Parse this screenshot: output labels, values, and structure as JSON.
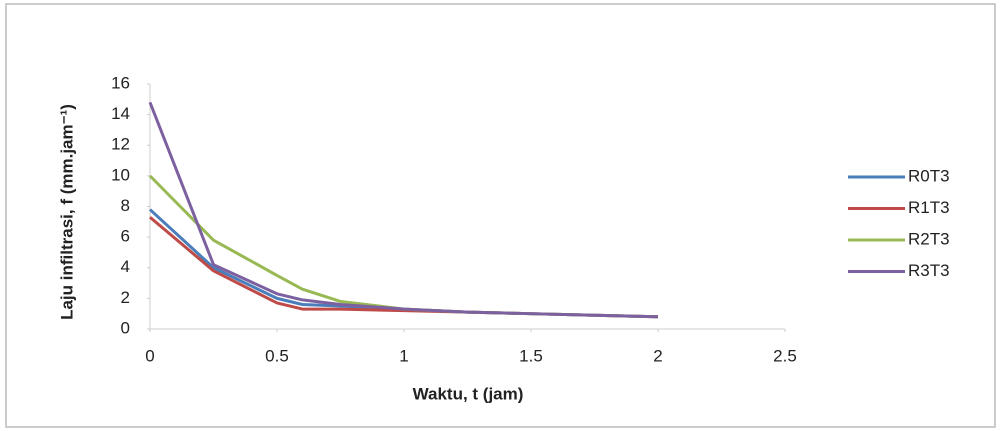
{
  "chart_data": {
    "type": "line",
    "x": [
      0,
      0.25,
      0.5,
      0.6,
      0.75,
      1,
      1.25,
      1.5,
      1.75,
      2
    ],
    "series": [
      {
        "name": "R0T3",
        "color": "#4a7ebb",
        "values": [
          7.8,
          4.0,
          2.0,
          1.6,
          1.5,
          1.3,
          1.1,
          1.0,
          0.9,
          0.8
        ]
      },
      {
        "name": "R1T3",
        "color": "#be4b48",
        "values": [
          7.3,
          3.8,
          1.7,
          1.3,
          1.3,
          1.2,
          1.1,
          1.0,
          0.9,
          0.8
        ]
      },
      {
        "name": "R2T3",
        "color": "#98b954",
        "values": [
          10,
          5.8,
          3.5,
          2.6,
          1.8,
          1.3,
          1.1,
          1.0,
          0.9,
          0.8
        ]
      },
      {
        "name": "R3T3",
        "color": "#7d60a0",
        "values": [
          14.8,
          4.2,
          2.3,
          1.9,
          1.6,
          1.3,
          1.1,
          1.0,
          0.9,
          0.8
        ]
      }
    ],
    "x_label": "Waktu, t (jam)",
    "y_label": "Laju infiltrasi, f (mm.jam⁻¹)",
    "xlim": [
      0,
      2.5
    ],
    "xticks": [
      0,
      0.5,
      1,
      1.5,
      2,
      2.5
    ],
    "ylim": [
      0,
      16
    ],
    "yticks": [
      0,
      2,
      4,
      6,
      8,
      10,
      12,
      14,
      16
    ],
    "grid": false,
    "legend": "right"
  }
}
